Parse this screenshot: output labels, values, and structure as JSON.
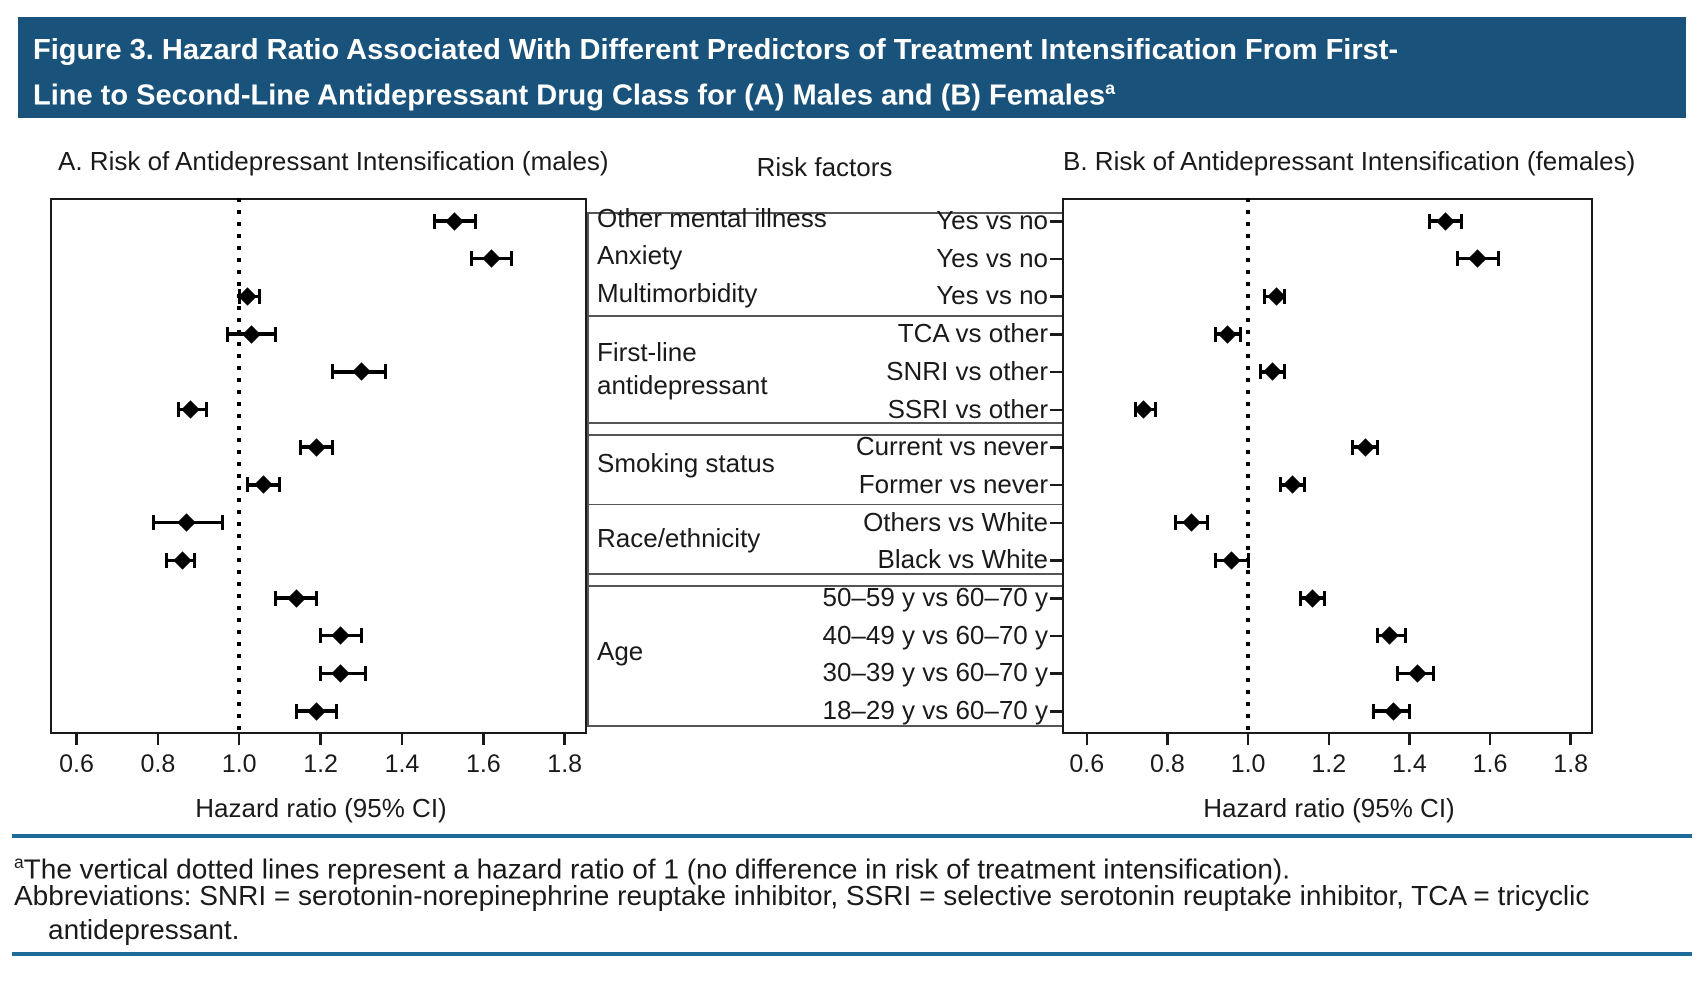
{
  "banner": {
    "title_line1": "Figure 3. Hazard Ratio Associated With Different Predictors of Treatment Intensification From First-",
    "title_line2": "Line to Second-Line Antidepressant Drug Class for (A) Males and (B) Females",
    "superscript": "a",
    "bg_color": "#19527A",
    "text_color": "#FFFFFF"
  },
  "panels": {
    "a_title": "A. Risk of Antidepressant Intensification (males)",
    "b_title": "B. Risk of Antidepressant Intensification (females)",
    "center_heading": "Risk factors",
    "xlabel": "Hazard ratio (95% CI)"
  },
  "chart_data": {
    "type": "scatter",
    "subtype": "forest-plot",
    "title": "Hazard ratio associated with predictors of treatment intensification, males (A) and females (B)",
    "xlabel": "Hazard ratio (95% CI)",
    "x_ticks": [
      0.6,
      0.8,
      1.0,
      1.2,
      1.4,
      1.6,
      1.8
    ],
    "xlim": [
      0.54,
      1.85
    ],
    "reference_line": 1.0,
    "grid": false,
    "marker_color": "#000000",
    "groups": [
      {
        "label_lines": [
          "Other mental illness"
        ],
        "rows": [
          0
        ],
        "divider_after": "none"
      },
      {
        "label_lines": [
          "Anxiety"
        ],
        "rows": [
          1
        ],
        "divider_after": "none"
      },
      {
        "label_lines": [
          "Multimorbidity"
        ],
        "rows": [
          2
        ],
        "divider_after": "single"
      },
      {
        "label_lines": [
          "First-line",
          "antidepressant"
        ],
        "rows": [
          3,
          4,
          5
        ],
        "divider_after": "double"
      },
      {
        "label_lines": [
          "Smoking status"
        ],
        "rows": [
          6,
          7
        ],
        "divider_after": "single"
      },
      {
        "label_lines": [
          "Race/ethnicity"
        ],
        "rows": [
          8,
          9
        ],
        "divider_after": "double"
      },
      {
        "label_lines": [
          "Age"
        ],
        "rows": [
          10,
          11,
          12,
          13
        ],
        "divider_after": "none"
      }
    ],
    "rows": [
      {
        "comparison": "Yes vs no",
        "male": {
          "hr": 1.53,
          "lo": 1.48,
          "hi": 1.58
        },
        "female": {
          "hr": 1.49,
          "lo": 1.45,
          "hi": 1.53
        }
      },
      {
        "comparison": "Yes vs no",
        "male": {
          "hr": 1.62,
          "lo": 1.57,
          "hi": 1.67
        },
        "female": {
          "hr": 1.57,
          "lo": 1.52,
          "hi": 1.62
        }
      },
      {
        "comparison": "Yes vs no",
        "male": {
          "hr": 1.02,
          "lo": 1.0,
          "hi": 1.05
        },
        "female": {
          "hr": 1.07,
          "lo": 1.04,
          "hi": 1.09
        }
      },
      {
        "comparison": "TCA vs other",
        "male": {
          "hr": 1.03,
          "lo": 0.97,
          "hi": 1.09
        },
        "female": {
          "hr": 0.95,
          "lo": 0.92,
          "hi": 0.98
        }
      },
      {
        "comparison": "SNRI vs other",
        "male": {
          "hr": 1.3,
          "lo": 1.23,
          "hi": 1.36
        },
        "female": {
          "hr": 1.06,
          "lo": 1.03,
          "hi": 1.09
        }
      },
      {
        "comparison": "SSRI vs other",
        "male": {
          "hr": 0.88,
          "lo": 0.85,
          "hi": 0.92
        },
        "female": {
          "hr": 0.74,
          "lo": 0.72,
          "hi": 0.77
        }
      },
      {
        "comparison": "Current vs never",
        "male": {
          "hr": 1.19,
          "lo": 1.15,
          "hi": 1.23
        },
        "female": {
          "hr": 1.29,
          "lo": 1.26,
          "hi": 1.32
        }
      },
      {
        "comparison": "Former vs never",
        "male": {
          "hr": 1.06,
          "lo": 1.02,
          "hi": 1.1
        },
        "female": {
          "hr": 1.11,
          "lo": 1.08,
          "hi": 1.14
        }
      },
      {
        "comparison": "Others vs White",
        "male": {
          "hr": 0.87,
          "lo": 0.79,
          "hi": 0.96
        },
        "female": {
          "hr": 0.86,
          "lo": 0.82,
          "hi": 0.9
        }
      },
      {
        "comparison": "Black vs White",
        "male": {
          "hr": 0.86,
          "lo": 0.82,
          "hi": 0.89
        },
        "female": {
          "hr": 0.96,
          "lo": 0.92,
          "hi": 1.0
        }
      },
      {
        "comparison": "50–59 y vs 60–70 y",
        "male": {
          "hr": 1.14,
          "lo": 1.09,
          "hi": 1.19
        },
        "female": {
          "hr": 1.16,
          "lo": 1.13,
          "hi": 1.19
        }
      },
      {
        "comparison": "40–49 y vs 60–70 y",
        "male": {
          "hr": 1.25,
          "lo": 1.2,
          "hi": 1.3
        },
        "female": {
          "hr": 1.35,
          "lo": 1.32,
          "hi": 1.39
        }
      },
      {
        "comparison": "30–39 y vs 60–70 y",
        "male": {
          "hr": 1.25,
          "lo": 1.2,
          "hi": 1.31
        },
        "female": {
          "hr": 1.42,
          "lo": 1.37,
          "hi": 1.46
        }
      },
      {
        "comparison": "18–29 y vs 60–70 y",
        "male": {
          "hr": 1.19,
          "lo": 1.14,
          "hi": 1.24
        },
        "female": {
          "hr": 1.36,
          "lo": 1.31,
          "hi": 1.4
        }
      }
    ]
  },
  "footnotes": {
    "superscript": "a",
    "line1": "The vertical dotted lines represent a hazard ratio of 1 (no difference in risk of treatment intensification).",
    "line2": "Abbreviations: SNRI = serotonin-norepinephrine reuptake inhibitor, SSRI = selective serotonin reuptake inhibitor, TCA = tricyclic",
    "line3": "antidepressant.",
    "rule_color": "#1D6B99"
  }
}
